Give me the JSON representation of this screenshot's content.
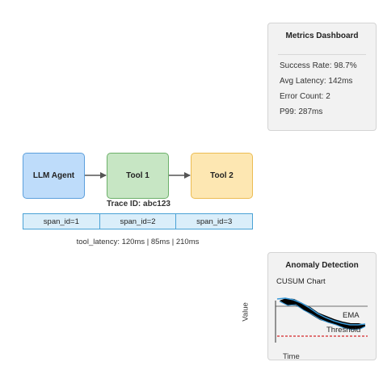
{
  "metrics": {
    "title": "Metrics Dashboard",
    "items": [
      "Success Rate: 98.7%",
      "Avg Latency: 142ms",
      "Error Count: 2",
      "P99: 287ms"
    ]
  },
  "flow": {
    "nodes": [
      "LLM Agent",
      "Tool 1",
      "Tool 2"
    ],
    "trace_id": "Trace ID: abc123",
    "spans": [
      "span_id=1",
      "span_id=2",
      "span_id=3"
    ],
    "latency": "tool_latency: 120ms | 85ms | 210ms"
  },
  "anomaly": {
    "title": "Anomaly Detection",
    "subtitle": "CUSUM Chart",
    "ylabel": "Value",
    "xlabel": "Time",
    "ema_label": "EMA",
    "threshold_label": "Threshold"
  },
  "colors": {
    "llm_fill": "#bedcfa",
    "tool1_fill": "#c7e6c4",
    "tool2_fill": "#fde7b2",
    "span_border": "#4aa2d6",
    "ema_line": "#3a9ad9",
    "threshold_line": "#d62728"
  }
}
